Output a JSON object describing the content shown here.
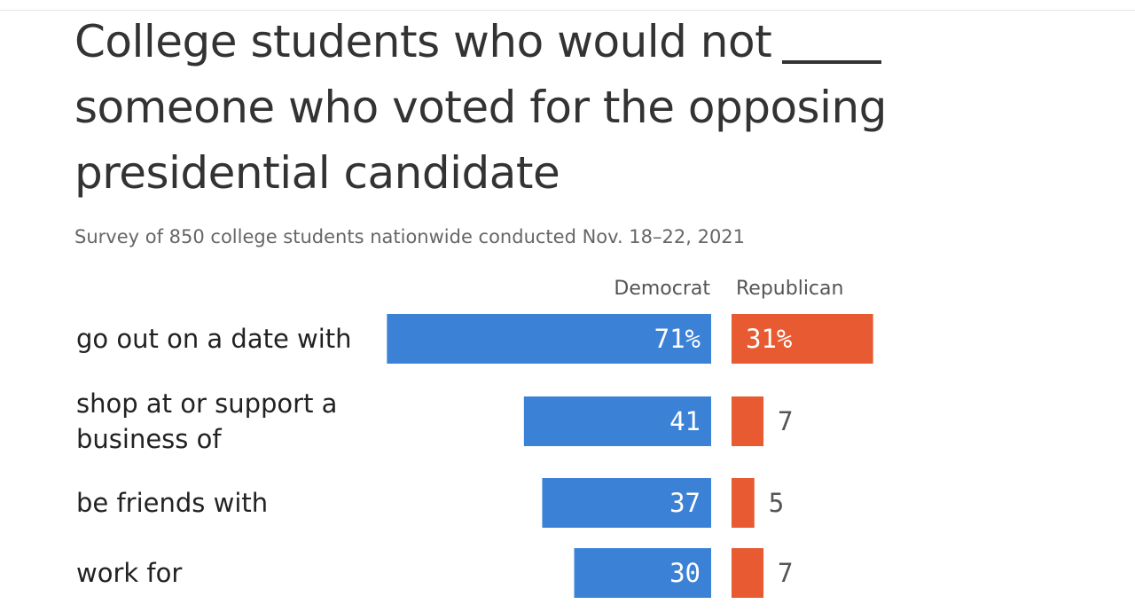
{
  "title_lines": [
    "College students who would not",
    "someone who voted for the opposing",
    "presidential candidate"
  ],
  "subtitle": "Survey of 850 college students nationwide conducted Nov. 18–22, 2021",
  "colors": {
    "democrat": "#3b82d6",
    "republican": "#e85a32"
  },
  "chart_data": {
    "type": "bar",
    "orientation": "horizontal-diverging",
    "categories": [
      [
        "go out on a date with"
      ],
      [
        "shop at or support a",
        "business of"
      ],
      [
        "be friends with"
      ],
      [
        "work for"
      ]
    ],
    "series": [
      {
        "name": "Democrat",
        "values": [
          71,
          41,
          37,
          30
        ],
        "labels": [
          "71%",
          "41",
          "37",
          "30"
        ],
        "color": "#3b82d6"
      },
      {
        "name": "Republican",
        "values": [
          31,
          7,
          5,
          7
        ],
        "labels": [
          "31%",
          "7",
          "5",
          "7"
        ],
        "color": "#e85a32"
      }
    ],
    "unit": "%",
    "grid": false,
    "legend": "top"
  }
}
